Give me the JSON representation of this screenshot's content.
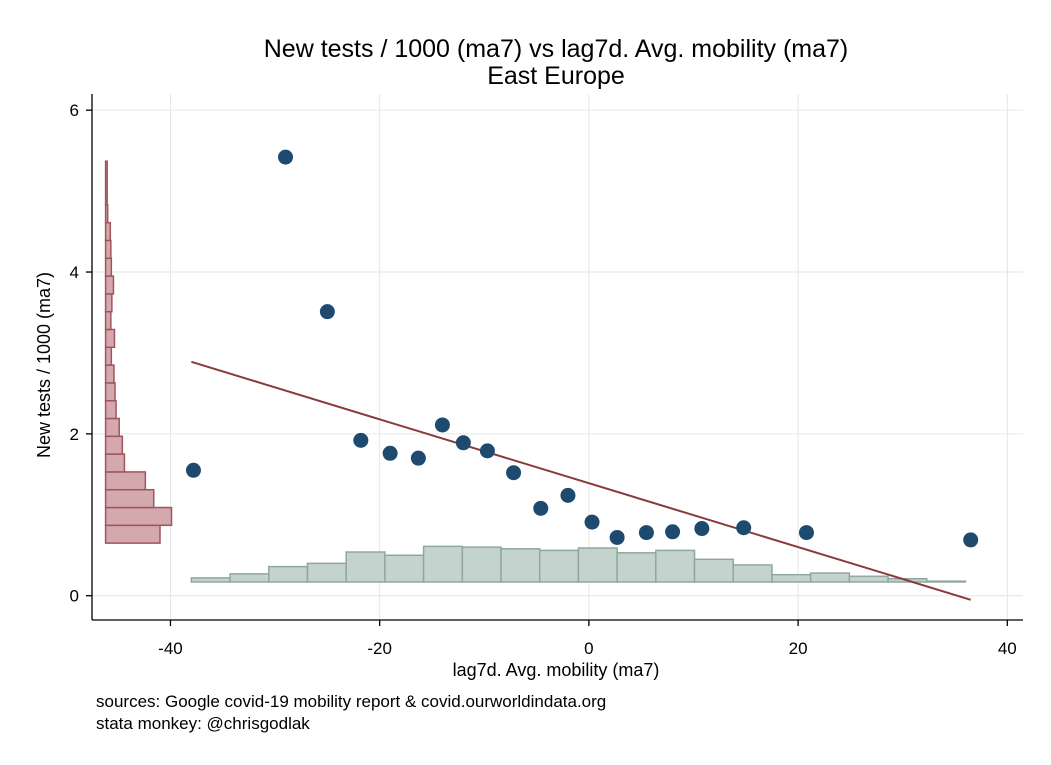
{
  "chart_data": {
    "type": "scatter",
    "title": "New tests / 1000 (ma7) vs lag7d. Avg. mobility (ma7)",
    "subtitle": "East Europe",
    "xlabel": "lag7d. Avg. mobility (ma7)",
    "ylabel": "New tests / 1000 (ma7)",
    "xlim": [
      -47.5,
      41.5
    ],
    "ylim": [
      -0.3,
      6.2
    ],
    "x_ticks": [
      -40,
      -20,
      0,
      20,
      40
    ],
    "x_tick_labels": [
      "-40",
      "-20",
      "0",
      "20",
      "40"
    ],
    "y_ticks": [
      0,
      2,
      4,
      6
    ],
    "y_tick_labels": [
      "0",
      "2",
      "4",
      "6"
    ],
    "grid": true,
    "notes": [
      "sources: Google covid-19 mobility report & covid.ourworldindata.org",
      "stata monkey: @chrisgodlak"
    ],
    "colors": {
      "points": "#1f4a70",
      "fit_line": "#8b3a3a",
      "y_hist_fill": "#d4a9ad",
      "y_hist_stroke": "#a0555c",
      "x_hist_fill": "#c5d3cf",
      "x_hist_stroke": "#8fa89e",
      "grid": "#e6e6e6"
    },
    "series": [
      {
        "type": "scatter",
        "x": [
          -37.8,
          -29.0,
          -25.0,
          -21.8,
          -19.0,
          -16.3,
          -14.0,
          -12.0,
          -9.7,
          -7.2,
          -4.6,
          -2.0,
          0.3,
          2.7,
          5.5,
          8.0,
          10.8,
          14.8,
          20.8,
          36.5
        ],
        "y": [
          1.55,
          5.42,
          3.51,
          1.92,
          1.76,
          1.7,
          2.11,
          1.89,
          1.79,
          1.52,
          1.08,
          1.24,
          0.91,
          0.72,
          0.78,
          0.79,
          0.83,
          0.84,
          0.78,
          0.69
        ]
      },
      {
        "type": "line",
        "x": [
          -38.0,
          36.5
        ],
        "y": [
          2.89,
          -0.05
        ]
      }
    ],
    "x_histogram": {
      "bin_edges": [
        -38,
        -34.3,
        -30.6,
        -26.9,
        -23.2,
        -19.5,
        -15.8,
        -12.1,
        -8.4,
        -4.7,
        -1.0,
        2.7,
        6.4,
        10.1,
        13.8,
        17.5,
        21.2,
        24.9,
        28.6,
        32.3,
        36.0
      ],
      "heights": [
        0.22,
        0.27,
        0.36,
        0.4,
        0.54,
        0.5,
        0.61,
        0.6,
        0.58,
        0.56,
        0.59,
        0.53,
        0.56,
        0.45,
        0.38,
        0.26,
        0.28,
        0.24,
        0.21,
        0.18
      ],
      "baseline": 0.17
    },
    "y_histogram": {
      "bin_edges": [
        0.65,
        0.87,
        1.09,
        1.31,
        1.53,
        1.75,
        1.97,
        2.19,
        2.41,
        2.63,
        2.85,
        3.07,
        3.29,
        3.51,
        3.73,
        3.95,
        4.17,
        4.39,
        4.61,
        4.83,
        5.05,
        5.37
      ],
      "lengths": [
        5.2,
        6.3,
        4.6,
        3.8,
        1.8,
        1.6,
        1.3,
        1.0,
        0.9,
        0.8,
        0.55,
        0.85,
        0.5,
        0.6,
        0.75,
        0.55,
        0.5,
        0.45,
        0.2,
        0.15,
        0.15
      ],
      "baseline": -46.2
    }
  }
}
